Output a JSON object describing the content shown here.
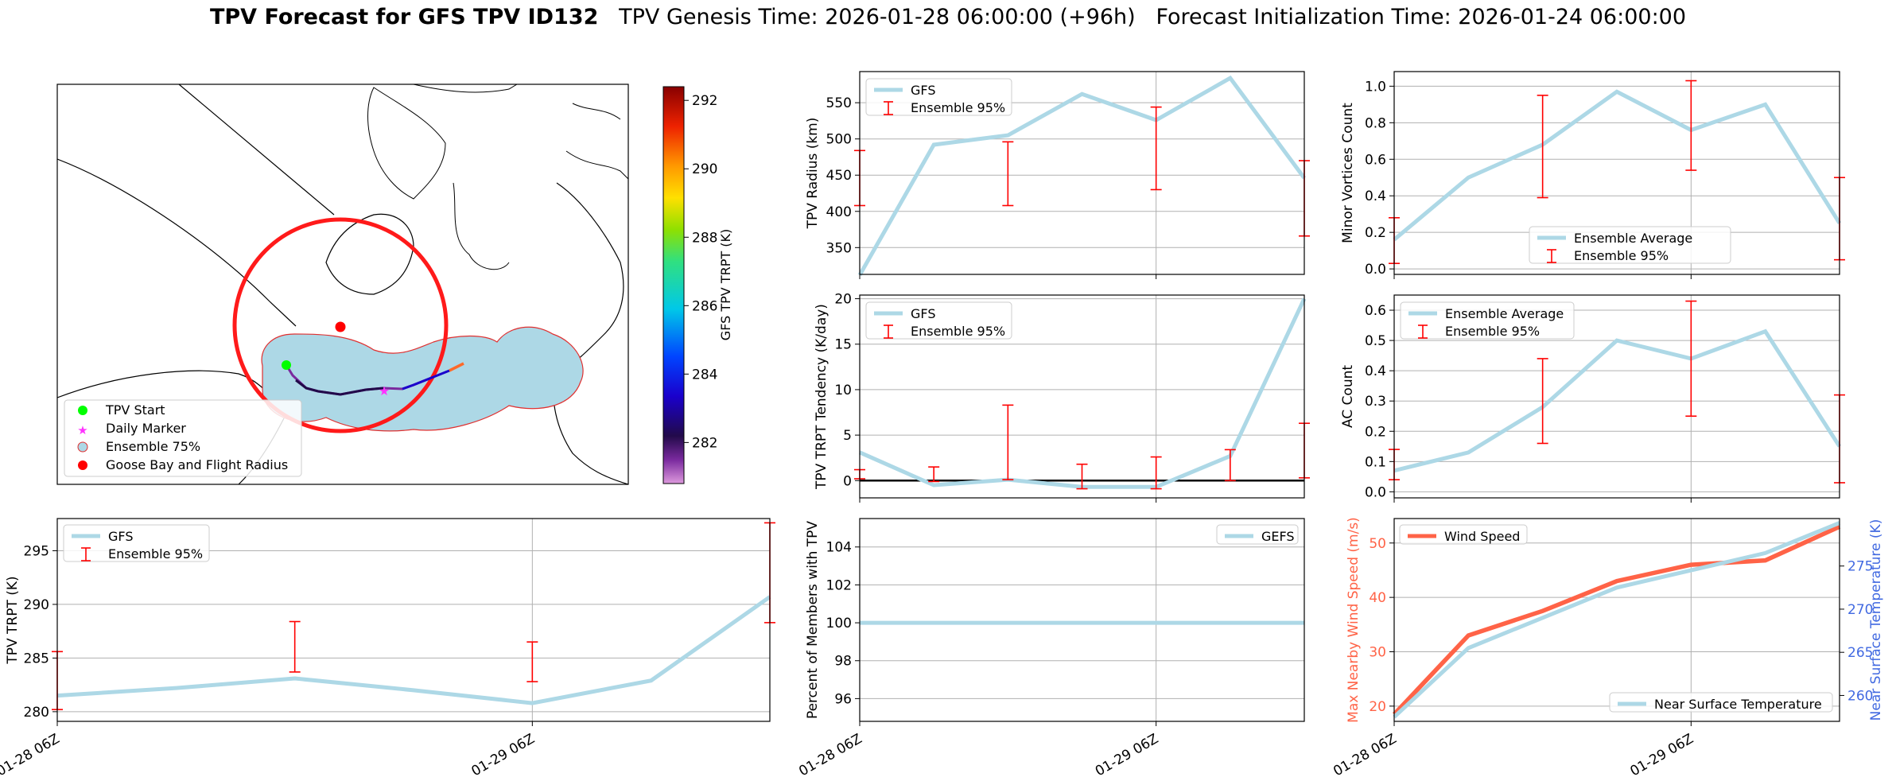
{
  "figure": {
    "title_bold": "TPV Forecast for GFS TPV ID132",
    "title_rest": "   TPV Genesis Time: 2026-01-28 06:00:00 (+96h)   Forecast Initialization Time: 2026-01-24 06:00:00"
  },
  "colors": {
    "gfs_line": "#add8e6",
    "errorbar": "#ff0000",
    "wind": "#ff6347",
    "temp_axis": "#4169e1",
    "grid": "#b0b0b0",
    "flight_radius": "#ff1a1a",
    "ens_fill": "#add8e6"
  },
  "map": {
    "colorbar_label": "GFS TPV TRPT (K)",
    "colorbar_ticks": [
      282,
      284,
      286,
      288,
      290,
      292
    ],
    "colorbar_range": [
      280.8,
      292.4
    ],
    "legend": [
      "TPV Start",
      "Daily Marker",
      "Ensemble 75%",
      "Goose Bay and Flight Radius"
    ],
    "icons": [
      "start-dot-icon",
      "star-icon",
      "circle-outline-icon",
      "red-dot-icon"
    ]
  },
  "chart_data": [
    {
      "id": "radius",
      "type": "line",
      "ylabel": "TPV Radius (km)",
      "x": [
        0,
        1,
        2,
        3,
        4,
        5,
        6
      ],
      "values": [
        312,
        492,
        505,
        562,
        526,
        584,
        446
      ],
      "series_label": "GFS",
      "errorbar_label": "Ensemble 95%",
      "errorbars": [
        {
          "x": 0,
          "lo": 408,
          "hi": 484
        },
        {
          "x": 2,
          "lo": 408,
          "hi": 496
        },
        {
          "x": 4,
          "lo": 430,
          "hi": 544
        },
        {
          "x": 6,
          "lo": 366,
          "hi": 470
        }
      ],
      "ylim": [
        313,
        593
      ],
      "yticks": [
        350,
        400,
        450,
        500,
        550
      ],
      "legend": "top-left",
      "grid": true
    },
    {
      "id": "minor",
      "type": "line",
      "ylabel": "Minor Vortices Count",
      "x": [
        0,
        1,
        2,
        3,
        4,
        5,
        6
      ],
      "values": [
        0.16,
        0.5,
        0.68,
        0.97,
        0.76,
        0.9,
        0.25
      ],
      "series_label": "Ensemble Average",
      "errorbar_label": "Ensemble 95%",
      "errorbars": [
        {
          "x": 0,
          "lo": 0.03,
          "hi": 0.28
        },
        {
          "x": 2,
          "lo": 0.39,
          "hi": 0.95
        },
        {
          "x": 4,
          "lo": 0.54,
          "hi": 1.03
        },
        {
          "x": 6,
          "lo": 0.05,
          "hi": 0.5
        }
      ],
      "ylim": [
        -0.03,
        1.08
      ],
      "yticks": [
        0.0,
        0.2,
        0.4,
        0.6,
        0.8,
        1.0
      ],
      "legend": "lower-center",
      "grid": true
    },
    {
      "id": "tendency",
      "type": "line",
      "ylabel": "TPV TRPT Tendency (K/day)",
      "x": [
        0,
        1,
        2,
        3,
        4,
        5,
        6
      ],
      "values": [
        3.1,
        -0.5,
        0.1,
        -0.7,
        -0.7,
        2.7,
        20.0
      ],
      "series_label": "GFS",
      "errorbar_label": "Ensemble 95%",
      "errorbars": [
        {
          "x": 0,
          "lo": 0.2,
          "hi": 1.2
        },
        {
          "x": 1,
          "lo": -0.1,
          "hi": 1.5
        },
        {
          "x": 2,
          "lo": 0.1,
          "hi": 8.3
        },
        {
          "x": 3,
          "lo": -0.9,
          "hi": 1.8
        },
        {
          "x": 4,
          "lo": -0.9,
          "hi": 2.6
        },
        {
          "x": 5,
          "lo": 0.0,
          "hi": 3.4
        },
        {
          "x": 6,
          "lo": 0.3,
          "hi": 6.3
        }
      ],
      "ylim": [
        -1.9,
        20.4
      ],
      "yticks": [
        0,
        5,
        10,
        15,
        20
      ],
      "zero_line": true,
      "legend": "top-left",
      "grid": true
    },
    {
      "id": "ac",
      "type": "line",
      "ylabel": "AC Count",
      "x": [
        0,
        1,
        2,
        3,
        4,
        5,
        6
      ],
      "values": [
        0.07,
        0.13,
        0.28,
        0.5,
        0.44,
        0.53,
        0.15
      ],
      "series_label": "Ensemble Average",
      "errorbar_label": "Ensemble 95%",
      "errorbars": [
        {
          "x": 0,
          "lo": 0.04,
          "hi": 0.14
        },
        {
          "x": 2,
          "lo": 0.16,
          "hi": 0.44
        },
        {
          "x": 4,
          "lo": 0.25,
          "hi": 0.63
        },
        {
          "x": 6,
          "lo": 0.03,
          "hi": 0.32
        }
      ],
      "ylim": [
        -0.02,
        0.65
      ],
      "yticks": [
        0.0,
        0.1,
        0.2,
        0.3,
        0.4,
        0.5,
        0.6
      ],
      "legend": "top-left",
      "grid": true
    },
    {
      "id": "trpt",
      "type": "line",
      "ylabel": "TPV TRPT (K)",
      "x": [
        0,
        1,
        2,
        3,
        4,
        5,
        6
      ],
      "values": [
        281.5,
        282.2,
        283.1,
        282.0,
        280.8,
        282.9,
        290.7
      ],
      "series_label": "GFS",
      "errorbar_label": "Ensemble 95%",
      "errorbars": [
        {
          "x": 0,
          "lo": 280.2,
          "hi": 285.6
        },
        {
          "x": 2,
          "lo": 283.7,
          "hi": 288.4
        },
        {
          "x": 4,
          "lo": 282.8,
          "hi": 286.5
        },
        {
          "x": 6,
          "lo": 288.3,
          "hi": 297.6
        }
      ],
      "ylim": [
        279.1,
        298.0
      ],
      "yticks": [
        280,
        285,
        290,
        295
      ],
      "xticks": [
        {
          "x": 0,
          "label": "01-28 06Z"
        },
        {
          "x": 4,
          "label": "01-29 06Z"
        }
      ],
      "legend": "top-left",
      "grid": true
    },
    {
      "id": "members",
      "type": "line",
      "ylabel": "Percent of Members with TPV",
      "x": [
        0,
        1,
        2,
        3,
        4,
        5,
        6
      ],
      "values": [
        100,
        100,
        100,
        100,
        100,
        100,
        100
      ],
      "series_label": "GEFS",
      "ylim": [
        94.8,
        105.5
      ],
      "yticks": [
        96,
        98,
        100,
        102,
        104
      ],
      "xticks": [
        {
          "x": 0,
          "label": "01-28 06Z"
        },
        {
          "x": 4,
          "label": "01-29 06Z"
        }
      ],
      "legend": "top-right",
      "grid": true
    },
    {
      "id": "wind_temp",
      "type": "line",
      "ylabel": "Max Nearby Wind Speed (m/s)",
      "y2label": "Near Surface Temperature (K)",
      "x": [
        0,
        1,
        2,
        3,
        4,
        5,
        6
      ],
      "series": [
        {
          "name": "Wind Speed",
          "axis": "left",
          "values": [
            18.5,
            33.0,
            37.5,
            43.0,
            46.0,
            46.8,
            53.0
          ]
        },
        {
          "name": "Near Surface Temperature",
          "axis": "right",
          "values": [
            257.5,
            265.5,
            269.0,
            272.5,
            274.5,
            276.5,
            280.0
          ]
        }
      ],
      "ylim": [
        17.2,
        54.5
      ],
      "y2lim": [
        257.0,
        280.5
      ],
      "yticks": [
        20,
        30,
        40,
        50
      ],
      "y2ticks": [
        260,
        265,
        270,
        275
      ],
      "xticks": [
        {
          "x": 0,
          "label": "01-28 06Z"
        },
        {
          "x": 4,
          "label": "01-29 06Z"
        }
      ],
      "legend": "top-left / lower-right",
      "grid": true
    }
  ]
}
